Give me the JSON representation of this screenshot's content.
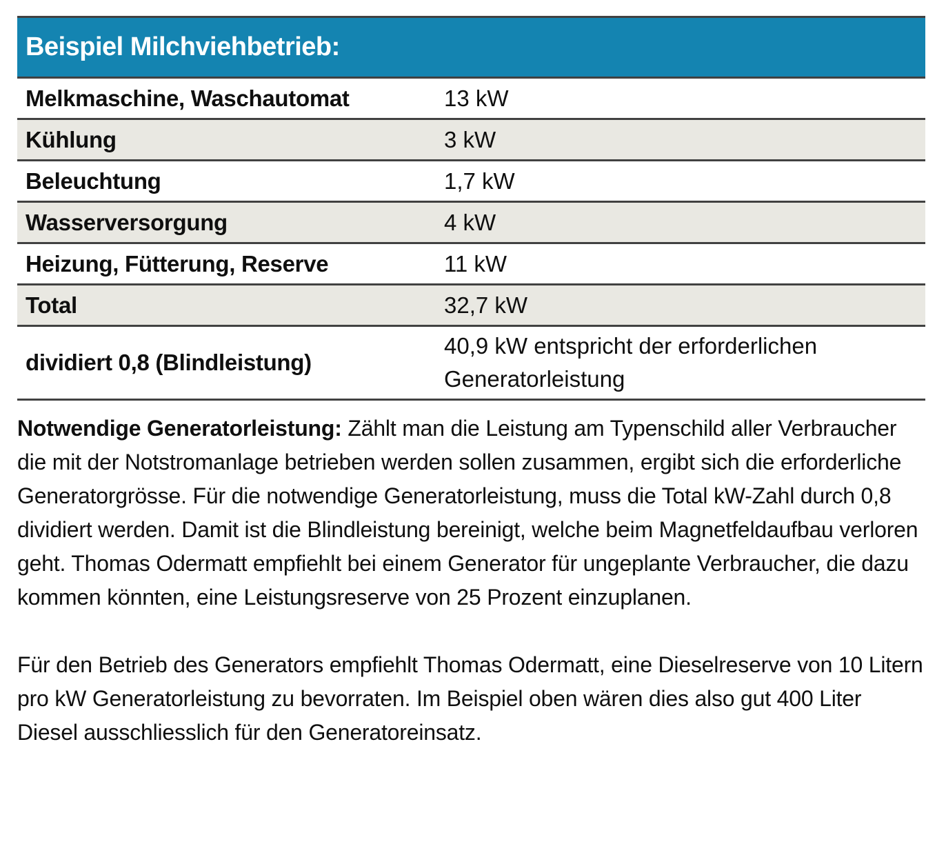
{
  "colors": {
    "header_bg": "#1484b1",
    "header_text": "#ffffff",
    "shaded_row_bg": "#e9e8e2",
    "border": "#414141",
    "text": "#0f0f0f"
  },
  "table": {
    "title": "Beispiel Milchviehbetrieb:",
    "rows": [
      {
        "label": "Melkmaschine, Waschautomat",
        "value": "13 kW"
      },
      {
        "label": "Kühlung",
        "value": "3 kW"
      },
      {
        "label": "Beleuchtung",
        "value": "1,7 kW"
      },
      {
        "label": "Wasserversorgung",
        "value": "4 kW"
      },
      {
        "label": "Heizung, Fütterung, Reserve",
        "value": "11 kW"
      },
      {
        "label": "Total",
        "value": "32,7 kW"
      },
      {
        "label": "dividiert 0,8 (Blindleistung)",
        "value": "40,9 kW entspricht der erforderlichen Generatorleistung"
      }
    ]
  },
  "paragraphs": [
    {
      "lead": "Notwendige Generatorleistung:",
      "text": " Zählt man die Leistung am Typenschild aller Verbraucher die mit der Notstromanlage betrieben werden sollen zusammen, ergibt sich die erforderliche Generatorgrösse. Für die notwendige Generatorleistung, muss die Total kW-Zahl durch 0,8 dividiert werden. Damit ist die Blindleistung bereinigt, welche beim Magnetfeldaufbau verloren geht. Thomas Odermatt empfiehlt bei einem Generator für ungeplante Verbraucher, die dazu kommen könnten, eine Leistungsreserve von 25 Prozent einzuplanen."
    },
    {
      "lead": "",
      "text": "Für den Betrieb des Generators empfiehlt Thomas Odermatt, eine Dieselreserve von 10 Litern pro kW Generatorleistung zu bevorraten. Im Beispiel oben wären dies also gut 400 Liter Diesel ausschliesslich für den Generatoreinsatz."
    }
  ]
}
